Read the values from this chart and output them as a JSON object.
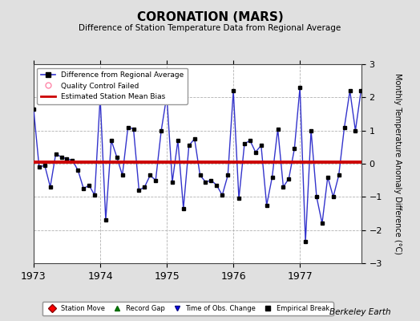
{
  "title": "CORONATION (MARS)",
  "subtitle": "Difference of Station Temperature Data from Regional Average",
  "ylabel": "Monthly Temperature Anomaly Difference (°C)",
  "bias_value": 0.05,
  "ylim": [
    -3,
    3
  ],
  "yticks": [
    -3,
    -2,
    -1,
    0,
    1,
    2,
    3
  ],
  "background_color": "#e0e0e0",
  "plot_background": "#ffffff",
  "line_color": "#3333cc",
  "marker_color": "#000000",
  "bias_color": "#cc0000",
  "berkeley_earth_text": "Berkeley Earth",
  "x_start_year": 1973.0,
  "x_end_year": 1977.92,
  "xtick_years": [
    1973,
    1974,
    1975,
    1976,
    1977
  ],
  "data_x": [
    1973.0,
    1973.083,
    1973.167,
    1973.25,
    1973.333,
    1973.417,
    1973.5,
    1973.583,
    1973.667,
    1973.75,
    1973.833,
    1973.917,
    1974.0,
    1974.083,
    1974.167,
    1974.25,
    1974.333,
    1974.417,
    1974.5,
    1974.583,
    1974.667,
    1974.75,
    1974.833,
    1974.917,
    1975.0,
    1975.083,
    1975.167,
    1975.25,
    1975.333,
    1975.417,
    1975.5,
    1975.583,
    1975.667,
    1975.75,
    1975.833,
    1975.917,
    1976.0,
    1976.083,
    1976.167,
    1976.25,
    1976.333,
    1976.417,
    1976.5,
    1976.583,
    1976.667,
    1976.75,
    1976.833,
    1976.917,
    1977.0,
    1977.083,
    1977.167,
    1977.25,
    1977.333,
    1977.417,
    1977.5,
    1977.583,
    1977.667,
    1977.75,
    1977.833,
    1977.917
  ],
  "data_y": [
    1.65,
    -0.1,
    -0.05,
    -0.7,
    0.3,
    0.2,
    0.15,
    0.1,
    -0.2,
    -0.75,
    -0.65,
    -0.95,
    2.0,
    -1.7,
    0.7,
    0.2,
    -0.35,
    1.1,
    1.05,
    -0.8,
    -0.7,
    -0.35,
    -0.5,
    1.0,
    2.05,
    -0.55,
    0.7,
    -1.35,
    0.55,
    0.75,
    -0.35,
    -0.55,
    -0.5,
    -0.65,
    -0.95,
    -0.35,
    2.2,
    -1.05,
    0.6,
    0.7,
    0.35,
    0.55,
    -1.25,
    -0.4,
    1.05,
    -0.7,
    -0.45,
    0.45,
    2.3,
    -2.35,
    1.0,
    -1.0,
    -1.8,
    -0.4,
    -1.0,
    -0.35,
    1.1,
    2.2,
    1.0,
    2.2
  ]
}
